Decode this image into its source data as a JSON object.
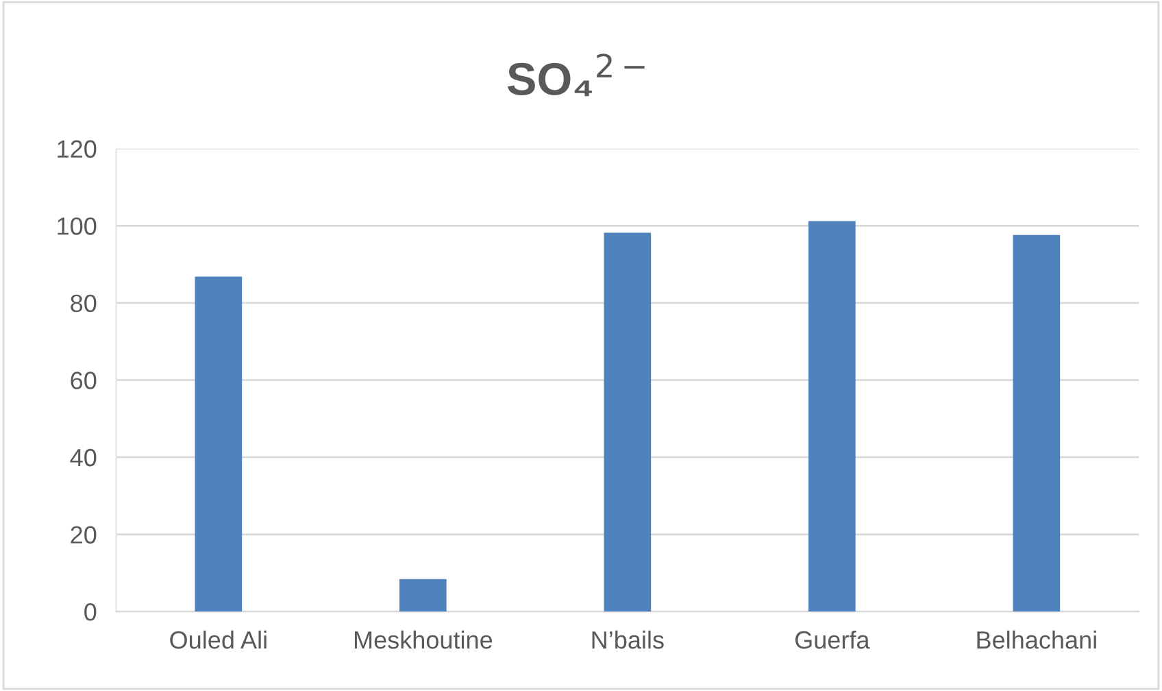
{
  "chart_data": {
    "type": "bar",
    "title": "SO₄$^{2−}$",
    "categories": [
      "Ouled Ali",
      "Meskhoutine",
      "N’bails",
      "Guerfa",
      "Belhachani"
    ],
    "values": [
      86.8,
      8.4,
      98.2,
      101.2,
      97.6
    ],
    "color": "#4f81bd",
    "ylim": [
      0,
      120
    ],
    "yticks": [
      0,
      20,
      40,
      60,
      80,
      100,
      120
    ],
    "grid": "y"
  }
}
